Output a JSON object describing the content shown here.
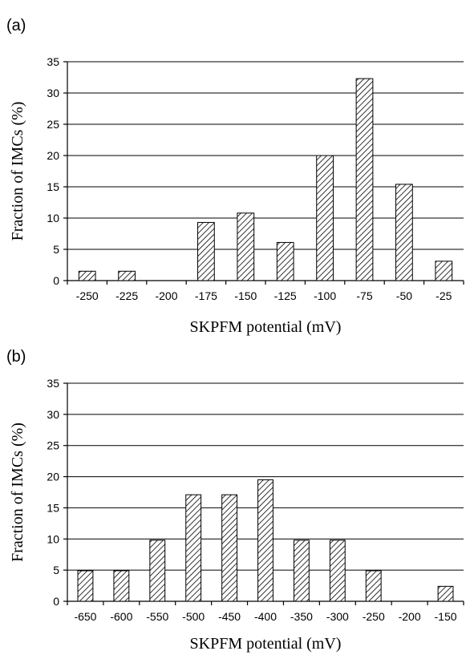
{
  "chart_data": [
    {
      "type": "bar",
      "panel_label": "(a)",
      "categories": [
        "-250",
        "-225",
        "-200",
        "-175",
        "-150",
        "-125",
        "-100",
        "-75",
        "-50",
        "-25"
      ],
      "values": [
        1.5,
        1.5,
        0,
        9.3,
        10.8,
        6.1,
        20.0,
        32.3,
        15.4,
        3.1
      ],
      "xlabel": "SKPFM potential (mV)",
      "ylabel": "Fraction of IMCs (%)",
      "ylim": [
        0,
        35
      ],
      "yticks": [
        "0",
        "5",
        "10",
        "15",
        "20",
        "25",
        "30",
        "35"
      ],
      "grid": true,
      "legend": "none"
    },
    {
      "type": "bar",
      "panel_label": "(b)",
      "categories": [
        "-650",
        "-600",
        "-550",
        "-500",
        "-450",
        "-400",
        "-350",
        "-300",
        "-250",
        "-200",
        "-150"
      ],
      "values": [
        4.9,
        4.9,
        9.8,
        17.1,
        17.1,
        19.5,
        9.8,
        9.8,
        4.9,
        0,
        2.4
      ],
      "xlabel": "SKPFM potential (mV)",
      "ylabel": "Fraction of IMCs (%)",
      "ylim": [
        0,
        35
      ],
      "yticks": [
        "0",
        "5",
        "10",
        "15",
        "20",
        "25",
        "30",
        "35"
      ],
      "grid": true,
      "legend": "none"
    }
  ]
}
